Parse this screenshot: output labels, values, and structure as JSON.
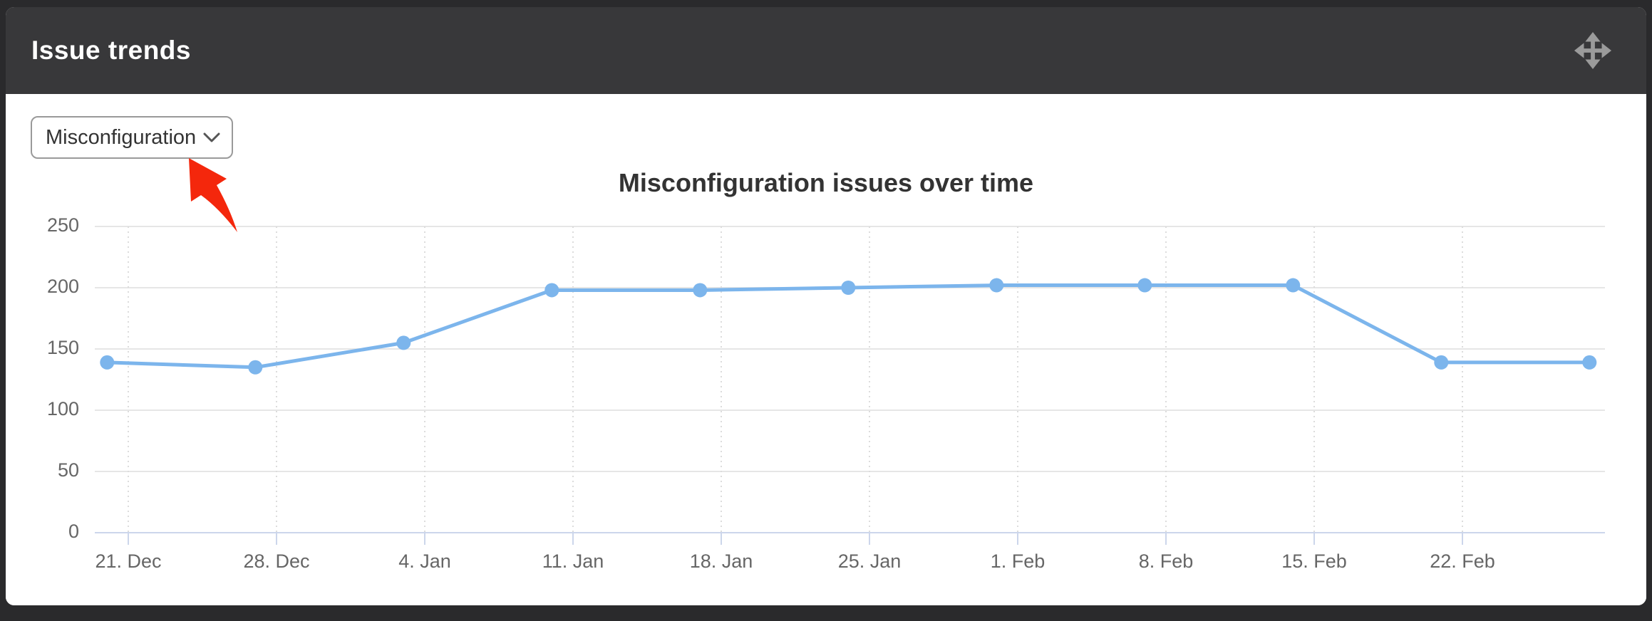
{
  "page": {
    "background": "#2a2a2c",
    "card_background": "#ffffff"
  },
  "widget": {
    "title": "Issue trends",
    "header_bg": "#38383a",
    "title_color": "#ffffff",
    "move_icon_color": "#9b9b9b"
  },
  "controls": {
    "issue_type_select": {
      "value": "Misconfiguration",
      "border_color": "#9a9a9a",
      "text_color": "#333333",
      "chevron_color": "#555555"
    }
  },
  "annotation_arrow": {
    "color": "#f4270c",
    "points_at": "issue-type-select"
  },
  "chart_data": {
    "type": "line",
    "title": "Misconfiguration issues over time",
    "title_color": "#333333",
    "legend": "none",
    "ylim": [
      0,
      250
    ],
    "y_ticks": [
      0,
      50,
      100,
      150,
      200,
      250
    ],
    "x_ticks": [
      {
        "day": 0,
        "label": "21. Dec"
      },
      {
        "day": 7,
        "label": "28. Dec"
      },
      {
        "day": 14,
        "label": "4. Jan"
      },
      {
        "day": 21,
        "label": "11. Jan"
      },
      {
        "day": 28,
        "label": "18. Jan"
      },
      {
        "day": 35,
        "label": "25. Jan"
      },
      {
        "day": 42,
        "label": "1. Feb"
      },
      {
        "day": 49,
        "label": "8. Feb"
      },
      {
        "day": 56,
        "label": "15. Feb"
      },
      {
        "day": 63,
        "label": "22. Feb"
      }
    ],
    "series": [
      {
        "name": "Misconfiguration",
        "color": "#7cb5ec",
        "points": [
          {
            "day": -1,
            "value": 139
          },
          {
            "day": 6,
            "value": 135
          },
          {
            "day": 13,
            "value": 155
          },
          {
            "day": 20,
            "value": 198
          },
          {
            "day": 27,
            "value": 198
          },
          {
            "day": 34,
            "value": 200
          },
          {
            "day": 41,
            "value": 202
          },
          {
            "day": 48,
            "value": 202
          },
          {
            "day": 55,
            "value": 202
          },
          {
            "day": 62,
            "value": 139
          },
          {
            "day": 69,
            "value": 139
          }
        ]
      }
    ],
    "axis_label_color": "#666666",
    "axis_line_color": "#ccd6eb",
    "grid": {
      "h_color": "#e6e6e6",
      "v_color": "#dcdcdc",
      "v_style": "dotted"
    }
  }
}
